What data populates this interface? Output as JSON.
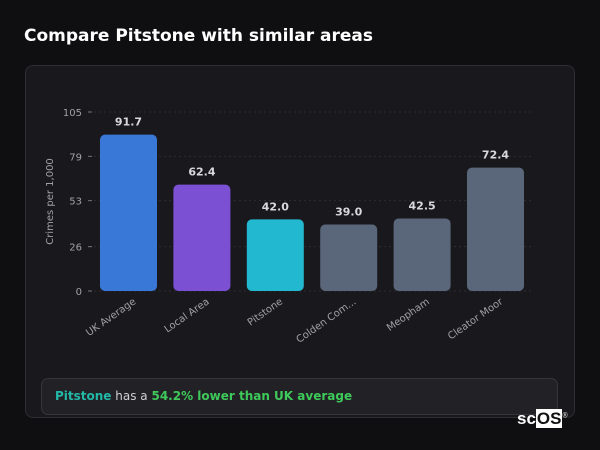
{
  "title": "Compare Pitstone with similar areas",
  "chart_data": {
    "type": "bar",
    "ylabel": "Crimes per 1,000",
    "ylim": [
      0,
      105
    ],
    "yticks": [
      0,
      26,
      53,
      79,
      105
    ],
    "grid": true,
    "categories": [
      "UK Average",
      "Local Area",
      "Pitstone",
      "Colden Com...",
      "Meopham",
      "Cleator Moor"
    ],
    "values": [
      91.7,
      62.4,
      42.0,
      39.0,
      42.5,
      72.4
    ],
    "value_labels": [
      "91.7",
      "62.4",
      "42.0",
      "39.0",
      "42.5",
      "72.4"
    ],
    "colors": [
      "#3a78d8",
      "#7b50d3",
      "#22b8cf",
      "#5a6679",
      "#5a6679",
      "#5a6679"
    ]
  },
  "summary": {
    "place": "Pitstone",
    "middle": " has a ",
    "highlight": "54.2% lower than UK average",
    "place_color": "#22b8a8",
    "highlight_color": "#3ec95a"
  },
  "logo": {
    "text_a": "sc",
    "text_b": "OS",
    "mark": "®"
  }
}
